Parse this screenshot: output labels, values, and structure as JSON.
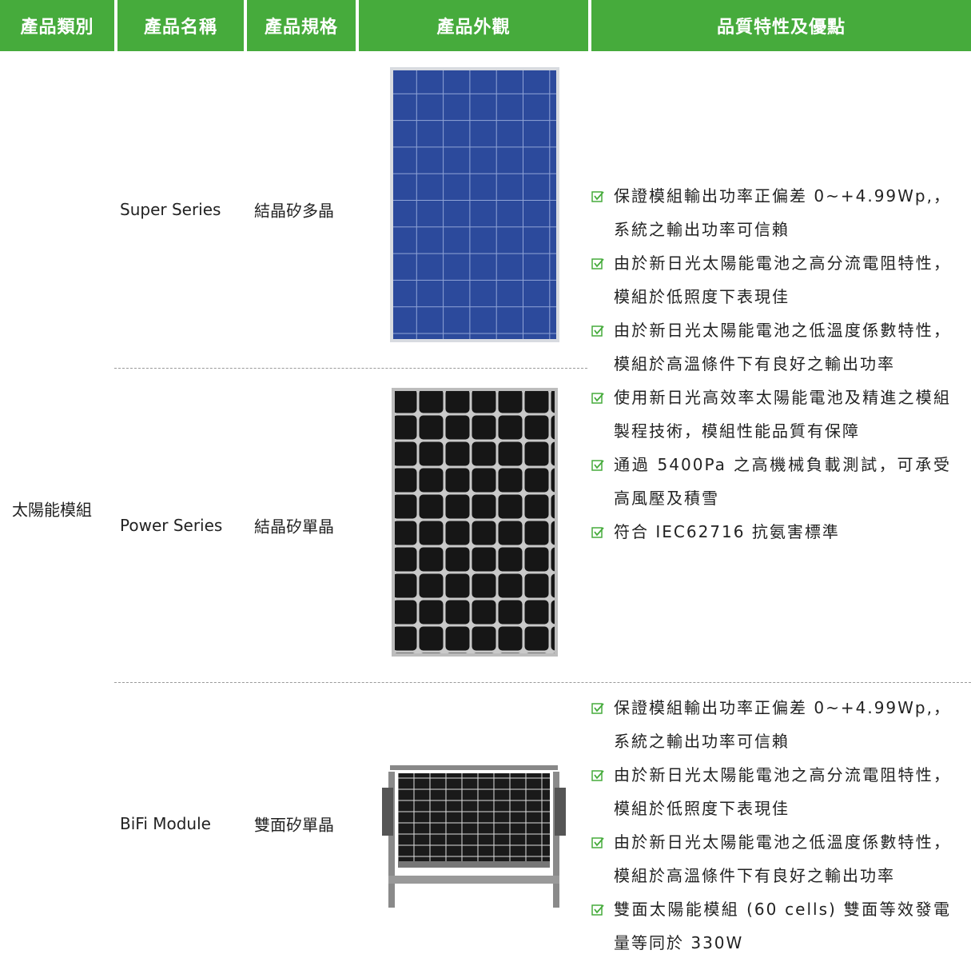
{
  "header": {
    "columns": [
      "產品類別",
      "產品名稱",
      "產品規格",
      "產品外觀",
      "品質特性及優點"
    ]
  },
  "table": {
    "category": "太陽能模組",
    "rows": [
      {
        "name": "Super Series",
        "spec": "結晶矽多晶"
      },
      {
        "name": "Power Series",
        "spec": "結晶矽單晶"
      },
      {
        "name": "BiFi Module",
        "spec": "雙面矽單晶"
      }
    ],
    "feature_groups": [
      [
        "保證模組輸出功率正偏差 0~+4.99Wp,，系統之輸出功率可信賴",
        "由於新日光太陽能電池之高分流電阻特性，模組於低照度下表現佳",
        "由於新日光太陽能電池之低溫度係數特性，模組於高溫條件下有良好之輸出功率",
        "使用新日光高效率太陽能電池及精進之模組製程技術，模組性能品質有保障",
        "通過 5400Pa 之高機械負載測試，可承受高風壓及積雪",
        "符合 IEC62716 抗氨害標準"
      ],
      [
        "保證模組輸出功率正偏差 0~+4.99Wp,，系統之輸出功率可信賴",
        "由於新日光太陽能電池之高分流電阻特性，模組於低照度下表現佳",
        "由於新日光太陽能電池之低溫度係數特性，模組於高溫條件下有良好之輸出功率",
        "雙面太陽能模組 (60 cells) 雙面等效發電量等同於 330W"
      ]
    ]
  }
}
